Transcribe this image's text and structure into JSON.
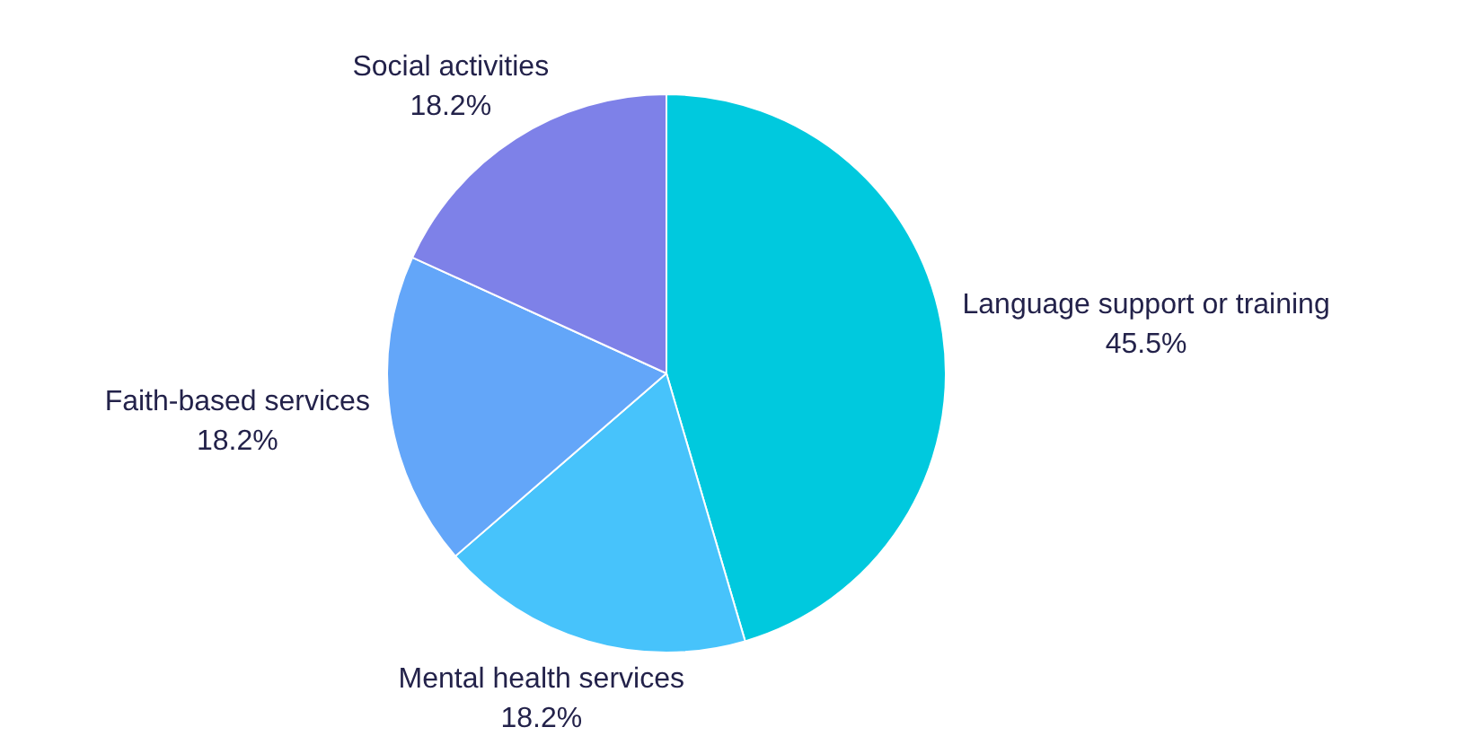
{
  "chart_data": {
    "type": "pie",
    "categories": [
      "Language support or training",
      "Mental health services",
      "Faith-based services",
      "Social activities"
    ],
    "values": [
      45.5,
      18.2,
      18.2,
      18.2
    ],
    "colors": [
      "#00c9de",
      "#47c3fb",
      "#63a6f9",
      "#7e81e8"
    ],
    "value_labels": [
      "45.5%",
      "18.2%",
      "18.2%",
      "18.2%"
    ],
    "legend": false
  }
}
